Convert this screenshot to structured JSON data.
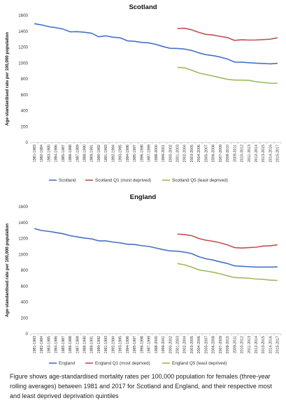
{
  "chart_data": [
    {
      "type": "line",
      "title": "Scotland",
      "xlabel": "",
      "ylabel": "Age-standardised rate per 100,000 population",
      "ylim": [
        0,
        1600
      ],
      "yticks": [
        0,
        200,
        400,
        600,
        800,
        1000,
        1200,
        1400,
        1600
      ],
      "grid": false,
      "legend": "bottom",
      "categories": [
        "1981-1983",
        "1982-1984",
        "1983-1985",
        "1984-1986",
        "1985-1987",
        "1986-1988",
        "1987-1989",
        "1988-1990",
        "1989-1991",
        "1990-1992",
        "1991-1993",
        "1992-1994",
        "1993-1995",
        "1994-1996",
        "1995-1997",
        "1996-1998",
        "1997-1999",
        "1998-2000",
        "1999-2001",
        "2000-2002",
        "2001-2003",
        "2002-2004",
        "2003-2005",
        "2004-2006",
        "2005-2007",
        "2006-2008",
        "2007-2009",
        "2008-2010",
        "2009-2011",
        "2010-2012",
        "2011-2013",
        "2012-2014",
        "2013-2015",
        "2014-2016",
        "2015-2017"
      ],
      "series": [
        {
          "name": "Scotland",
          "color": "#4472C4",
          "values": [
            1495,
            1480,
            1458,
            1445,
            1428,
            1393,
            1395,
            1387,
            1375,
            1330,
            1342,
            1325,
            1318,
            1280,
            1273,
            1260,
            1253,
            1235,
            1207,
            1185,
            1183,
            1176,
            1158,
            1127,
            1105,
            1093,
            1075,
            1050,
            1012,
            1010,
            1004,
            998,
            994,
            990,
            996
          ]
        },
        {
          "name": "Scotland Q1 (most deprived)",
          "color": "#C0504D",
          "values": [
            null,
            null,
            null,
            null,
            null,
            null,
            null,
            null,
            null,
            null,
            null,
            null,
            null,
            null,
            null,
            null,
            null,
            null,
            null,
            null,
            1435,
            1438,
            1418,
            1386,
            1360,
            1352,
            1335,
            1320,
            1285,
            1293,
            1289,
            1290,
            1295,
            1300,
            1318
          ]
        },
        {
          "name": "Scotland Q5 (least deprived)",
          "color": "#9BBB59",
          "values": [
            null,
            null,
            null,
            null,
            null,
            null,
            null,
            null,
            null,
            null,
            null,
            null,
            null,
            null,
            null,
            null,
            null,
            null,
            null,
            null,
            945,
            940,
            910,
            875,
            855,
            835,
            815,
            795,
            785,
            785,
            782,
            765,
            755,
            745,
            745
          ]
        }
      ]
    },
    {
      "type": "line",
      "title": "England",
      "xlabel": "",
      "ylabel": "Age-standardised rate per 100,000 population",
      "ylim": [
        0,
        1600
      ],
      "yticks": [
        0,
        200,
        400,
        600,
        800,
        1000,
        1200,
        1400,
        1600
      ],
      "grid": false,
      "legend": "bottom",
      "categories": [
        "1981-1983",
        "1982-1984",
        "1983-1985",
        "1984-1986",
        "1985-1987",
        "1986-1988",
        "1987-1989",
        "1988-1990",
        "1989-1991",
        "1990-1992",
        "1991-1993",
        "1992-1994",
        "1993-1995",
        "1994-1996",
        "1995-1997",
        "1996-1998",
        "1997-1999",
        "1998-2000",
        "1999-2001",
        "2000-2002",
        "2001-2003",
        "2002-2004",
        "2003-2005",
        "2004-2006",
        "2005-2007",
        "2006-2008",
        "2007-2009",
        "2008-2010",
        "2009-2011",
        "2010-2012",
        "2011-2013",
        "2012-2014",
        "2013-2015",
        "2014-2016",
        "2015-2017"
      ],
      "series": [
        {
          "name": "England",
          "color": "#4472C4",
          "values": [
            1325,
            1300,
            1290,
            1275,
            1260,
            1235,
            1220,
            1205,
            1195,
            1170,
            1170,
            1155,
            1145,
            1128,
            1125,
            1110,
            1100,
            1080,
            1060,
            1043,
            1040,
            1028,
            1010,
            970,
            945,
            928,
            905,
            885,
            855,
            850,
            845,
            840,
            840,
            840,
            842
          ]
        },
        {
          "name": "England Q1 (most deprived)",
          "color": "#C0504D",
          "values": [
            null,
            null,
            null,
            null,
            null,
            null,
            null,
            null,
            null,
            null,
            null,
            null,
            null,
            null,
            null,
            null,
            null,
            null,
            null,
            null,
            1255,
            1250,
            1235,
            1200,
            1178,
            1165,
            1145,
            1120,
            1085,
            1080,
            1085,
            1090,
            1105,
            1108,
            1120
          ]
        },
        {
          "name": "England Q5 (least deprived)",
          "color": "#9BBB59",
          "values": [
            null,
            null,
            null,
            null,
            null,
            null,
            null,
            null,
            null,
            null,
            null,
            null,
            null,
            null,
            null,
            null,
            null,
            null,
            null,
            null,
            885,
            868,
            840,
            805,
            790,
            775,
            755,
            730,
            708,
            705,
            700,
            690,
            685,
            675,
            672
          ]
        }
      ]
    }
  ],
  "caption": "Figure shows age-standardised mortality rates per 100,000 population for females (three-year rolling averages) between 1981 and 2017 for Scotland and England, and their respective most and least deprived deprivation quintiles"
}
